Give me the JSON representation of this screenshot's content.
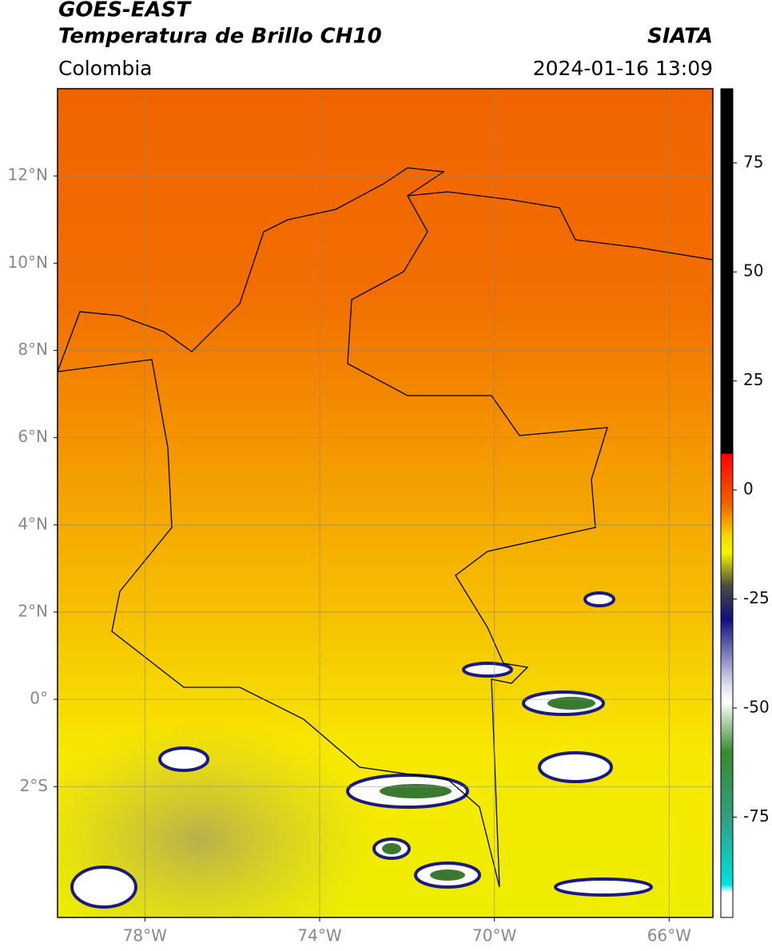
{
  "header": {
    "title": "GOES-EAST",
    "subtitle": "Temperatura de Brillo CH10",
    "source": "SIATA",
    "region": "Colombia",
    "timestamp": "2024-01-16 13:09"
  },
  "map": {
    "latlim": [
      -5,
      14
    ],
    "lonlim": [
      -80,
      -65
    ],
    "latticks": [
      {
        "value": 12,
        "label": "12°N"
      },
      {
        "value": 10,
        "label": "10°N"
      },
      {
        "value": 8,
        "label": "8°N"
      },
      {
        "value": 6,
        "label": "6°N"
      },
      {
        "value": 4,
        "label": "4°N"
      },
      {
        "value": 2,
        "label": "2°N"
      },
      {
        "value": 0,
        "label": "0°"
      },
      {
        "value": -2,
        "label": "2°S"
      }
    ],
    "lonticks": [
      {
        "value": -78,
        "label": "78°W"
      },
      {
        "value": -74,
        "label": "74°W"
      },
      {
        "value": -70,
        "label": "70°W"
      },
      {
        "value": -66,
        "label": "66°W"
      }
    ]
  },
  "colorbar": {
    "lim": [
      -98,
      92
    ],
    "ticks": [
      75,
      50,
      25,
      0,
      -25,
      -50,
      -75
    ]
  }
}
